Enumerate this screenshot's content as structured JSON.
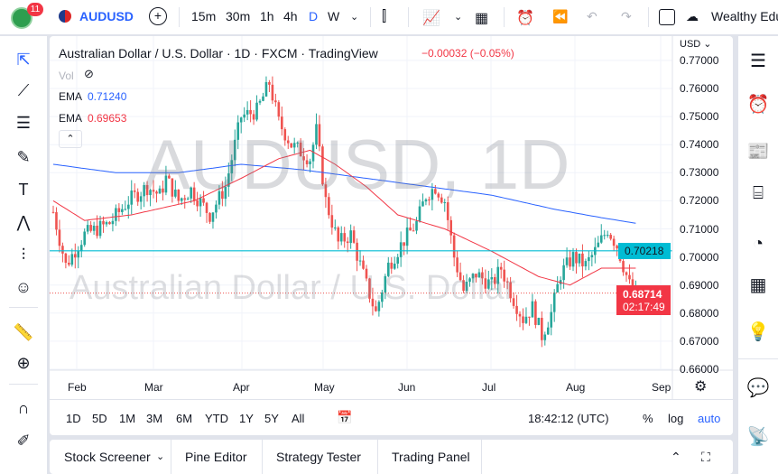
{
  "toolbar": {
    "badge": "11",
    "symbol": "AUDUSD",
    "intervals": [
      "15m",
      "30m",
      "1h",
      "4h",
      "D",
      "W"
    ],
    "account": "Wealthy Edu"
  },
  "legend": {
    "title": "Australian Dollar / U.S. Dollar · 1D · FXCM · TradingView",
    "change": "−0.00032 (−0.05%)",
    "vol": "Vol",
    "ema1_label": "EMA",
    "ema1_value": "0.71240",
    "ema2_label": "EMA",
    "ema2_value": "0.69653"
  },
  "watermark": {
    "line1": "AUDUSD, 1D",
    "line2": "Australian Dollar / U.S. Dollar"
  },
  "currency": "USD ⌄",
  "colors": {
    "up": "#26a69a",
    "down": "#ef5350",
    "ema_blue": "#2962ff",
    "ema_red": "#f23645",
    "hline": "#00bcd4"
  },
  "price_axis": [
    "0.77000",
    "0.76000",
    "0.75000",
    "0.74000",
    "0.73000",
    "0.72000",
    "0.71000",
    "0.70000",
    "0.69000",
    "0.68000",
    "0.67000",
    "0.66000"
  ],
  "hline_label": "0.70218",
  "last_price": "0.68714",
  "countdown": "02:17:49",
  "time_axis": [
    "Feb",
    "Mar",
    "Apr",
    "May",
    "Jun",
    "Jul",
    "Aug",
    "Sep"
  ],
  "ranges": [
    "1D",
    "5D",
    "1M",
    "3M",
    "6M",
    "YTD",
    "1Y",
    "5Y",
    "All"
  ],
  "clock": "18:42:12 (UTC)",
  "scale_opts": {
    "pct": "%",
    "log": "log",
    "auto": "auto"
  },
  "bottom_tabs": [
    "Stock Screener",
    "Pine Editor",
    "Strategy Tester",
    "Trading Panel"
  ],
  "chart_data": {
    "type": "candlestick",
    "symbol": "AUDUSD",
    "interval": "1D",
    "ylim": [
      0.66,
      0.77
    ],
    "close_keypoints": [
      [
        0,
        0.716
      ],
      [
        4,
        0.697
      ],
      [
        10,
        0.708
      ],
      [
        18,
        0.712
      ],
      [
        24,
        0.72
      ],
      [
        30,
        0.725
      ],
      [
        34,
        0.722
      ],
      [
        36,
        0.728
      ],
      [
        40,
        0.72
      ],
      [
        44,
        0.724
      ],
      [
        50,
        0.715
      ],
      [
        55,
        0.725
      ],
      [
        60,
        0.75
      ],
      [
        65,
        0.752
      ],
      [
        69,
        0.762
      ],
      [
        72,
        0.748
      ],
      [
        76,
        0.74
      ],
      [
        82,
        0.735
      ],
      [
        84,
        0.745
      ],
      [
        87,
        0.72
      ],
      [
        91,
        0.705
      ],
      [
        95,
        0.708
      ],
      [
        100,
        0.69
      ],
      [
        103,
        0.68
      ],
      [
        107,
        0.697
      ],
      [
        112,
        0.706
      ],
      [
        116,
        0.712
      ],
      [
        119,
        0.722
      ],
      [
        122,
        0.725
      ],
      [
        125,
        0.72
      ],
      [
        128,
        0.7
      ],
      [
        131,
        0.688
      ],
      [
        135,
        0.694
      ],
      [
        140,
        0.69
      ],
      [
        143,
        0.696
      ],
      [
        147,
        0.685
      ],
      [
        150,
        0.678
      ],
      [
        153,
        0.682
      ],
      [
        156,
        0.672
      ],
      [
        159,
        0.68
      ],
      [
        162,
        0.694
      ],
      [
        166,
        0.7
      ],
      [
        170,
        0.697
      ],
      [
        173,
        0.702
      ],
      [
        177,
        0.71
      ],
      [
        180,
        0.704
      ],
      [
        184,
        0.69
      ],
      [
        186,
        0.687
      ]
    ],
    "ema_blue": [
      [
        0,
        0.733
      ],
      [
        20,
        0.73
      ],
      [
        40,
        0.73
      ],
      [
        60,
        0.733
      ],
      [
        80,
        0.731
      ],
      [
        100,
        0.728
      ],
      [
        120,
        0.725
      ],
      [
        140,
        0.722
      ],
      [
        160,
        0.717
      ],
      [
        175,
        0.714
      ],
      [
        186,
        0.712
      ]
    ],
    "ema_red": [
      [
        0,
        0.72
      ],
      [
        10,
        0.713
      ],
      [
        25,
        0.715
      ],
      [
        45,
        0.72
      ],
      [
        60,
        0.728
      ],
      [
        72,
        0.735
      ],
      [
        82,
        0.738
      ],
      [
        90,
        0.733
      ],
      [
        100,
        0.725
      ],
      [
        110,
        0.715
      ],
      [
        125,
        0.71
      ],
      [
        140,
        0.702
      ],
      [
        155,
        0.693
      ],
      [
        165,
        0.69
      ],
      [
        175,
        0.696
      ],
      [
        186,
        0.696
      ]
    ]
  }
}
